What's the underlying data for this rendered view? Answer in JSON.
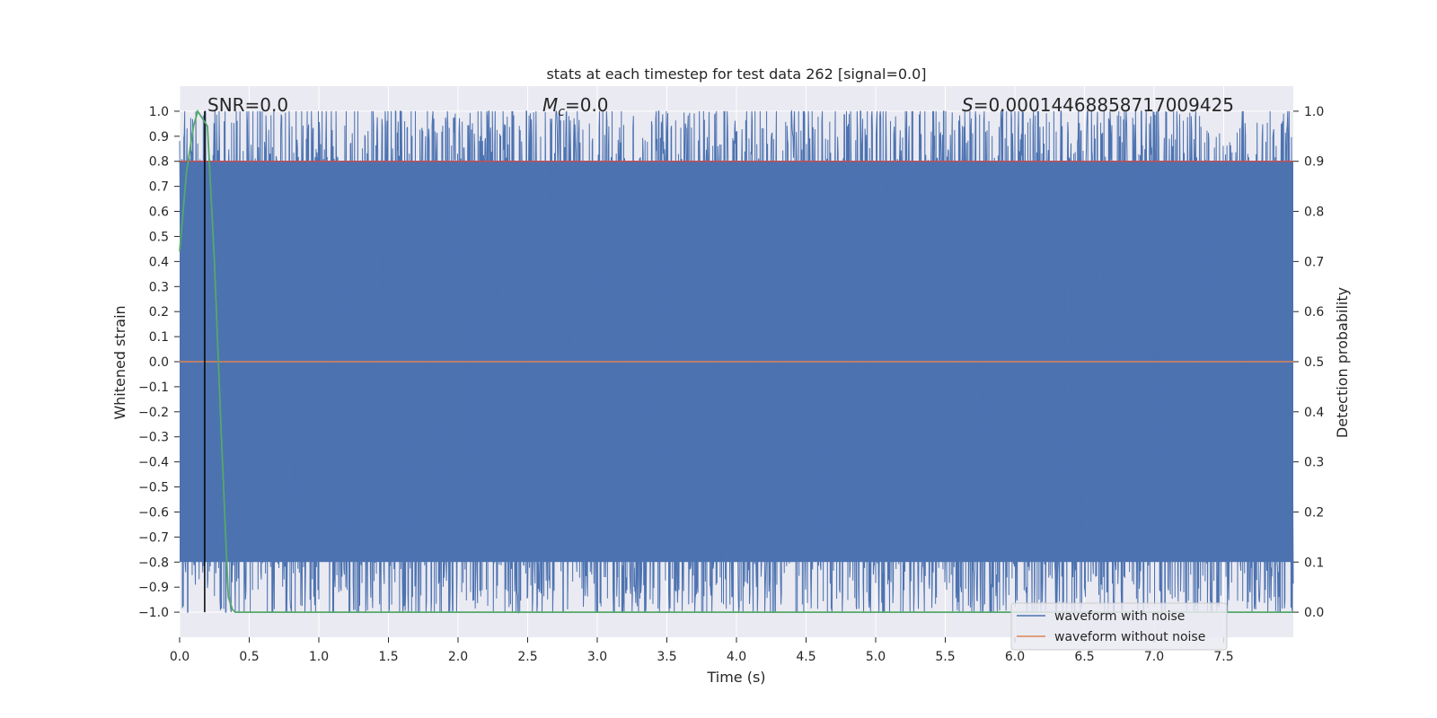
{
  "chart_data": {
    "type": "line",
    "title": "stats at each timestep for test data 262 [signal=0.0]",
    "xlabel": "Time (s)",
    "ylabel": "Whitened strain",
    "y2label": "Detection probability",
    "xlim": [
      0.0,
      8.0
    ],
    "ylim": [
      -1.1,
      1.1
    ],
    "y2lim": [
      -0.05,
      1.05
    ],
    "x_ticks": [
      "0.0",
      "0.5",
      "1.0",
      "1.5",
      "2.0",
      "2.5",
      "3.0",
      "3.5",
      "4.0",
      "4.5",
      "5.0",
      "5.5",
      "6.0",
      "6.5",
      "7.0",
      "7.5"
    ],
    "x_tick_values": [
      0.0,
      0.5,
      1.0,
      1.5,
      2.0,
      2.5,
      3.0,
      3.5,
      4.0,
      4.5,
      5.0,
      5.5,
      6.0,
      6.5,
      7.0,
      7.5
    ],
    "y_ticks": [
      "1.0",
      "0.9",
      "0.8",
      "0.7",
      "0.6",
      "0.5",
      "0.4",
      "0.3",
      "0.2",
      "0.1",
      "0.0",
      "−0.1",
      "−0.2",
      "−0.3",
      "−0.4",
      "−0.5",
      "−0.6",
      "−0.7",
      "−0.8",
      "−0.9",
      "−1.0"
    ],
    "y_tick_values": [
      1.0,
      0.9,
      0.8,
      0.7,
      0.6,
      0.5,
      0.4,
      0.3,
      0.2,
      0.1,
      0.0,
      -0.1,
      -0.2,
      -0.3,
      -0.4,
      -0.5,
      -0.6,
      -0.7,
      -0.8,
      -0.9,
      -1.0
    ],
    "y2_ticks": [
      "1.0",
      "0.9",
      "0.8",
      "0.7",
      "0.6",
      "0.5",
      "0.4",
      "0.3",
      "0.2",
      "0.1",
      "0.0"
    ],
    "y2_tick_values": [
      1.0,
      0.9,
      0.8,
      0.7,
      0.6,
      0.5,
      0.4,
      0.3,
      0.2,
      0.1,
      0.0
    ],
    "grid": true,
    "legend_position": "bottom-right",
    "series": [
      {
        "name": "waveform with noise",
        "color": "#4c72b0",
        "kind": "noise",
        "range": [
          -1.0,
          1.0
        ]
      },
      {
        "name": "waveform without noise",
        "color": "#dd8452",
        "x": [
          0.0,
          8.0
        ],
        "y": [
          0.0,
          0.0
        ]
      }
    ],
    "detection_probability": {
      "color": "#55a868",
      "x": [
        0.0,
        0.05,
        0.1,
        0.13,
        0.2,
        0.25,
        0.3,
        0.35,
        0.38,
        0.4,
        8.0
      ],
      "y": [
        0.72,
        0.88,
        0.97,
        1.0,
        0.97,
        0.7,
        0.35,
        0.03,
        0.005,
        0.0,
        0.0
      ]
    },
    "threshold_line": {
      "color": "#c44e52",
      "y2": 0.9
    },
    "marker_line": {
      "color": "#000000",
      "x": 0.18
    },
    "annotations": {
      "snr": "SNR=0.0",
      "mc_symbol": "M",
      "mc_sub": "c",
      "mc_value": "=0.0",
      "s_symbol": "S",
      "s_value": "=0.0001446885871700942​5"
    }
  }
}
